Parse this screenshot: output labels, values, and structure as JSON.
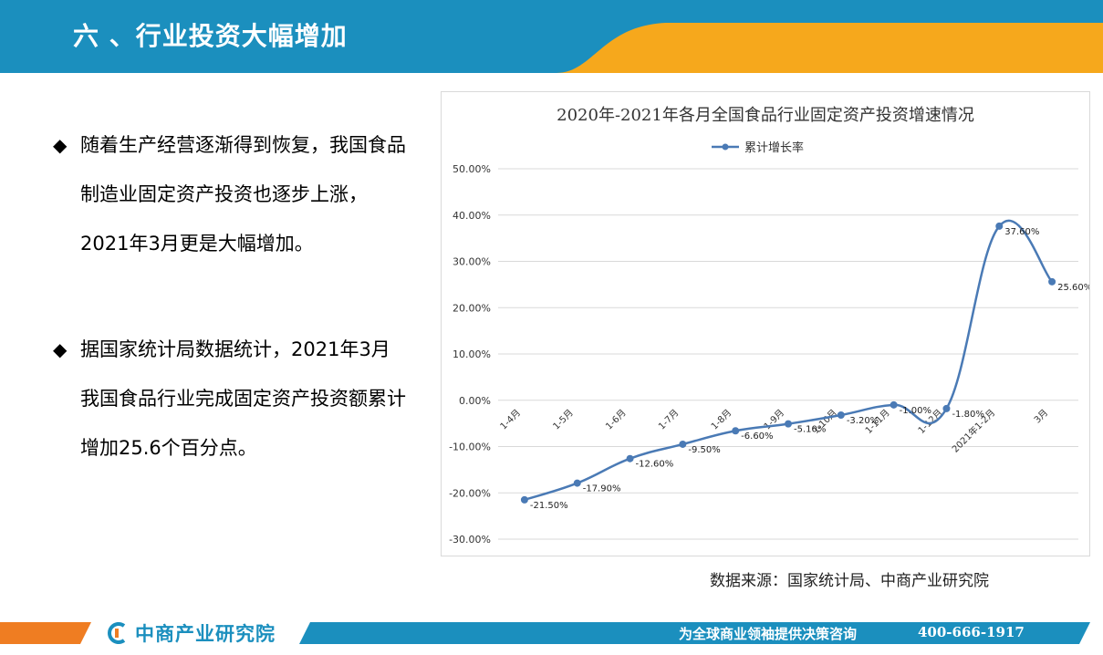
{
  "header": {
    "title": "六 、行业投资大幅增加"
  },
  "bullets": [
    {
      "marker": "◆",
      "text": "随着生产经营逐渐得到恢复，我国食品制造业固定资产投资也逐步上涨，2021年3月更是大幅增加。"
    },
    {
      "marker": "◆",
      "text": "据国家统计局数据统计，2021年3月我国食品行业完成固定资产投资额累计增加25.6个百分点。"
    }
  ],
  "chart_data": {
    "type": "line",
    "title": "2020年-2021年各月全国食品行业固定资产投资增速情况",
    "xlabel": "",
    "ylabel": "",
    "categories": [
      "1-4月",
      "1-5月",
      "1-6月",
      "1-7月",
      "1-8月",
      "1-9月",
      "1-10月",
      "1-11月",
      "1-12月",
      "2021年1-2月",
      "3月"
    ],
    "series": [
      {
        "name": "累计增长率",
        "values": [
          -21.5,
          -17.9,
          -12.6,
          -9.5,
          -6.6,
          -5.1,
          -3.2,
          -1.0,
          -1.8,
          37.6,
          25.6
        ],
        "labels": [
          "-21.50%",
          "-17.90%",
          "-12.60%",
          "-9.50%",
          "-6.60%",
          "-5.10%",
          "-3.20%",
          "-1.00%",
          "-1.80%",
          "37.60%",
          "25.60%"
        ]
      }
    ],
    "ylim": [
      -30,
      50
    ],
    "yticks": [
      50,
      40,
      30,
      20,
      10,
      0,
      -10,
      -20,
      -30
    ],
    "ytick_labels": [
      "50.00%",
      "40.00%",
      "30.00%",
      "20.00%",
      "10.00%",
      "0.00%",
      "-10.00%",
      "-20.00%",
      "-30.00%"
    ],
    "grid": true,
    "smooth": true,
    "legend": "top",
    "color": "#4a7ab5"
  },
  "source": "数据来源：国家统计局、中商产业研究院",
  "footer": {
    "logo_name": "中商产业研究院",
    "slogan": "为全球商业领袖提供决策咨询",
    "phone": "400-666-1917"
  },
  "colors": {
    "header_blue": "#1b8fbe",
    "header_orange": "#f6a81c",
    "footer_blue": "#1b8fbe",
    "footer_orange": "#ef7d22",
    "series": "#4a7ab5"
  }
}
